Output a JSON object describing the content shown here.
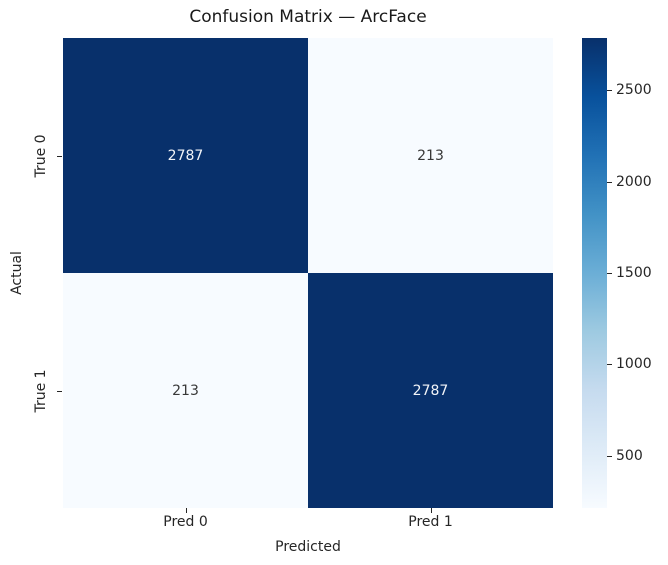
{
  "chart_data": {
    "type": "heatmap",
    "title": "Confusion Matrix — ArcFace",
    "xlabel": "Predicted",
    "ylabel": "Actual",
    "x_ticklabels": [
      "Pred 0",
      "Pred 1"
    ],
    "y_ticklabels": [
      "True 0",
      "True 1"
    ],
    "matrix": [
      [
        2787,
        213
      ],
      [
        213,
        2787
      ]
    ],
    "vmin": 213,
    "vmax": 2787,
    "colormap": "Blues",
    "colormap_stops": [
      "#f7fbff",
      "#deebf7",
      "#c6dbef",
      "#9ecae1",
      "#6baed6",
      "#4292c6",
      "#2171b5",
      "#08519c",
      "#08306b"
    ],
    "cell_colors": [
      [
        "#08306b",
        "#f7fbff"
      ],
      [
        "#f7fbff",
        "#08306b"
      ]
    ],
    "annot_colors": [
      [
        "#f2f4f8",
        "#383838"
      ],
      [
        "#383838",
        "#f2f4f8"
      ]
    ],
    "colorbar_ticks": [
      500,
      1000,
      1500,
      2000,
      2500
    ],
    "legend_position": "right-colorbar",
    "background_color": "#ffffff",
    "grid": false
  }
}
